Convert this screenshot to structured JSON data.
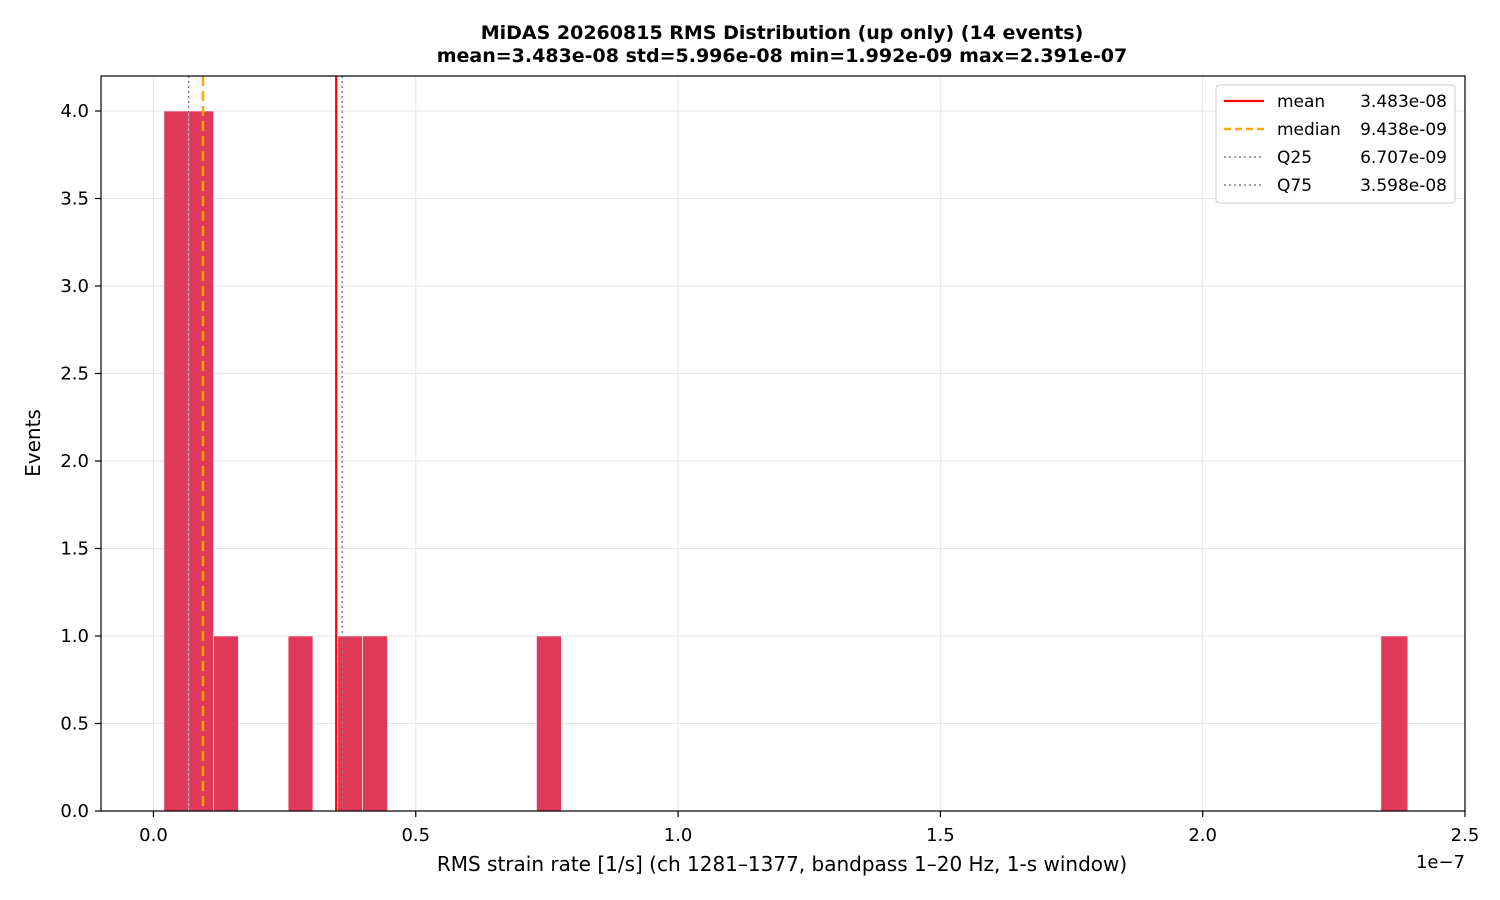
{
  "chart_data": {
    "type": "bar",
    "title_line1": "MiDAS 20260815  RMS Distribution  (up only)  (14 events)",
    "title_line2": "mean=3.483e-08  std=5.996e-08  min=1.992e-09  max=2.391e-07",
    "xlabel": "RMS strain rate [1/s]  (ch 1281–1377, bandpass 1–20 Hz, 1-s window)",
    "ylabel": "Events",
    "x_offset_label": "1e−7",
    "xlim": [
      -0.1,
      2.5
    ],
    "ylim": [
      0,
      4.2
    ],
    "x_unit_scale": "1e-7",
    "x_ticks": [
      0.0,
      0.5,
      1.0,
      1.5,
      2.0,
      2.5
    ],
    "x_tick_labels": [
      "0.0",
      "0.5",
      "1.0",
      "1.5",
      "2.0",
      "2.5"
    ],
    "y_ticks": [
      0.0,
      0.5,
      1.0,
      1.5,
      2.0,
      2.5,
      3.0,
      3.5,
      4.0
    ],
    "y_tick_labels": [
      "0.0",
      "0.5",
      "1.0",
      "1.5",
      "2.0",
      "2.5",
      "3.0",
      "3.5",
      "4.0"
    ],
    "grid": true,
    "bar_color": "#e0395a",
    "bins": [
      {
        "start": 0.0199,
        "end": 0.0673,
        "count": 4
      },
      {
        "start": 0.0673,
        "end": 0.1146,
        "count": 4
      },
      {
        "start": 0.1146,
        "end": 0.162,
        "count": 1
      },
      {
        "start": 0.2567,
        "end": 0.304,
        "count": 1
      },
      {
        "start": 0.3514,
        "end": 0.3987,
        "count": 1
      },
      {
        "start": 0.3987,
        "end": 0.4461,
        "count": 1
      },
      {
        "start": 0.7301,
        "end": 0.7775,
        "count": 1
      },
      {
        "start": 2.3397,
        "end": 2.391,
        "count": 1
      }
    ],
    "reference_lines": [
      {
        "name": "mean",
        "value": 0.3483,
        "label": "3.483e-08",
        "color": "#ff0000",
        "style": "solid"
      },
      {
        "name": "median",
        "value": 0.09438,
        "label": "9.438e-09",
        "color": "#ffa500",
        "style": "dashed"
      },
      {
        "name": "Q25",
        "value": 0.06707,
        "label": "6.707e-09",
        "color": "#808080",
        "style": "dotted"
      },
      {
        "name": "Q75",
        "value": 0.3598,
        "label": "3.598e-08",
        "color": "#808080",
        "style": "dotted"
      }
    ],
    "legend_position": "top-right"
  }
}
